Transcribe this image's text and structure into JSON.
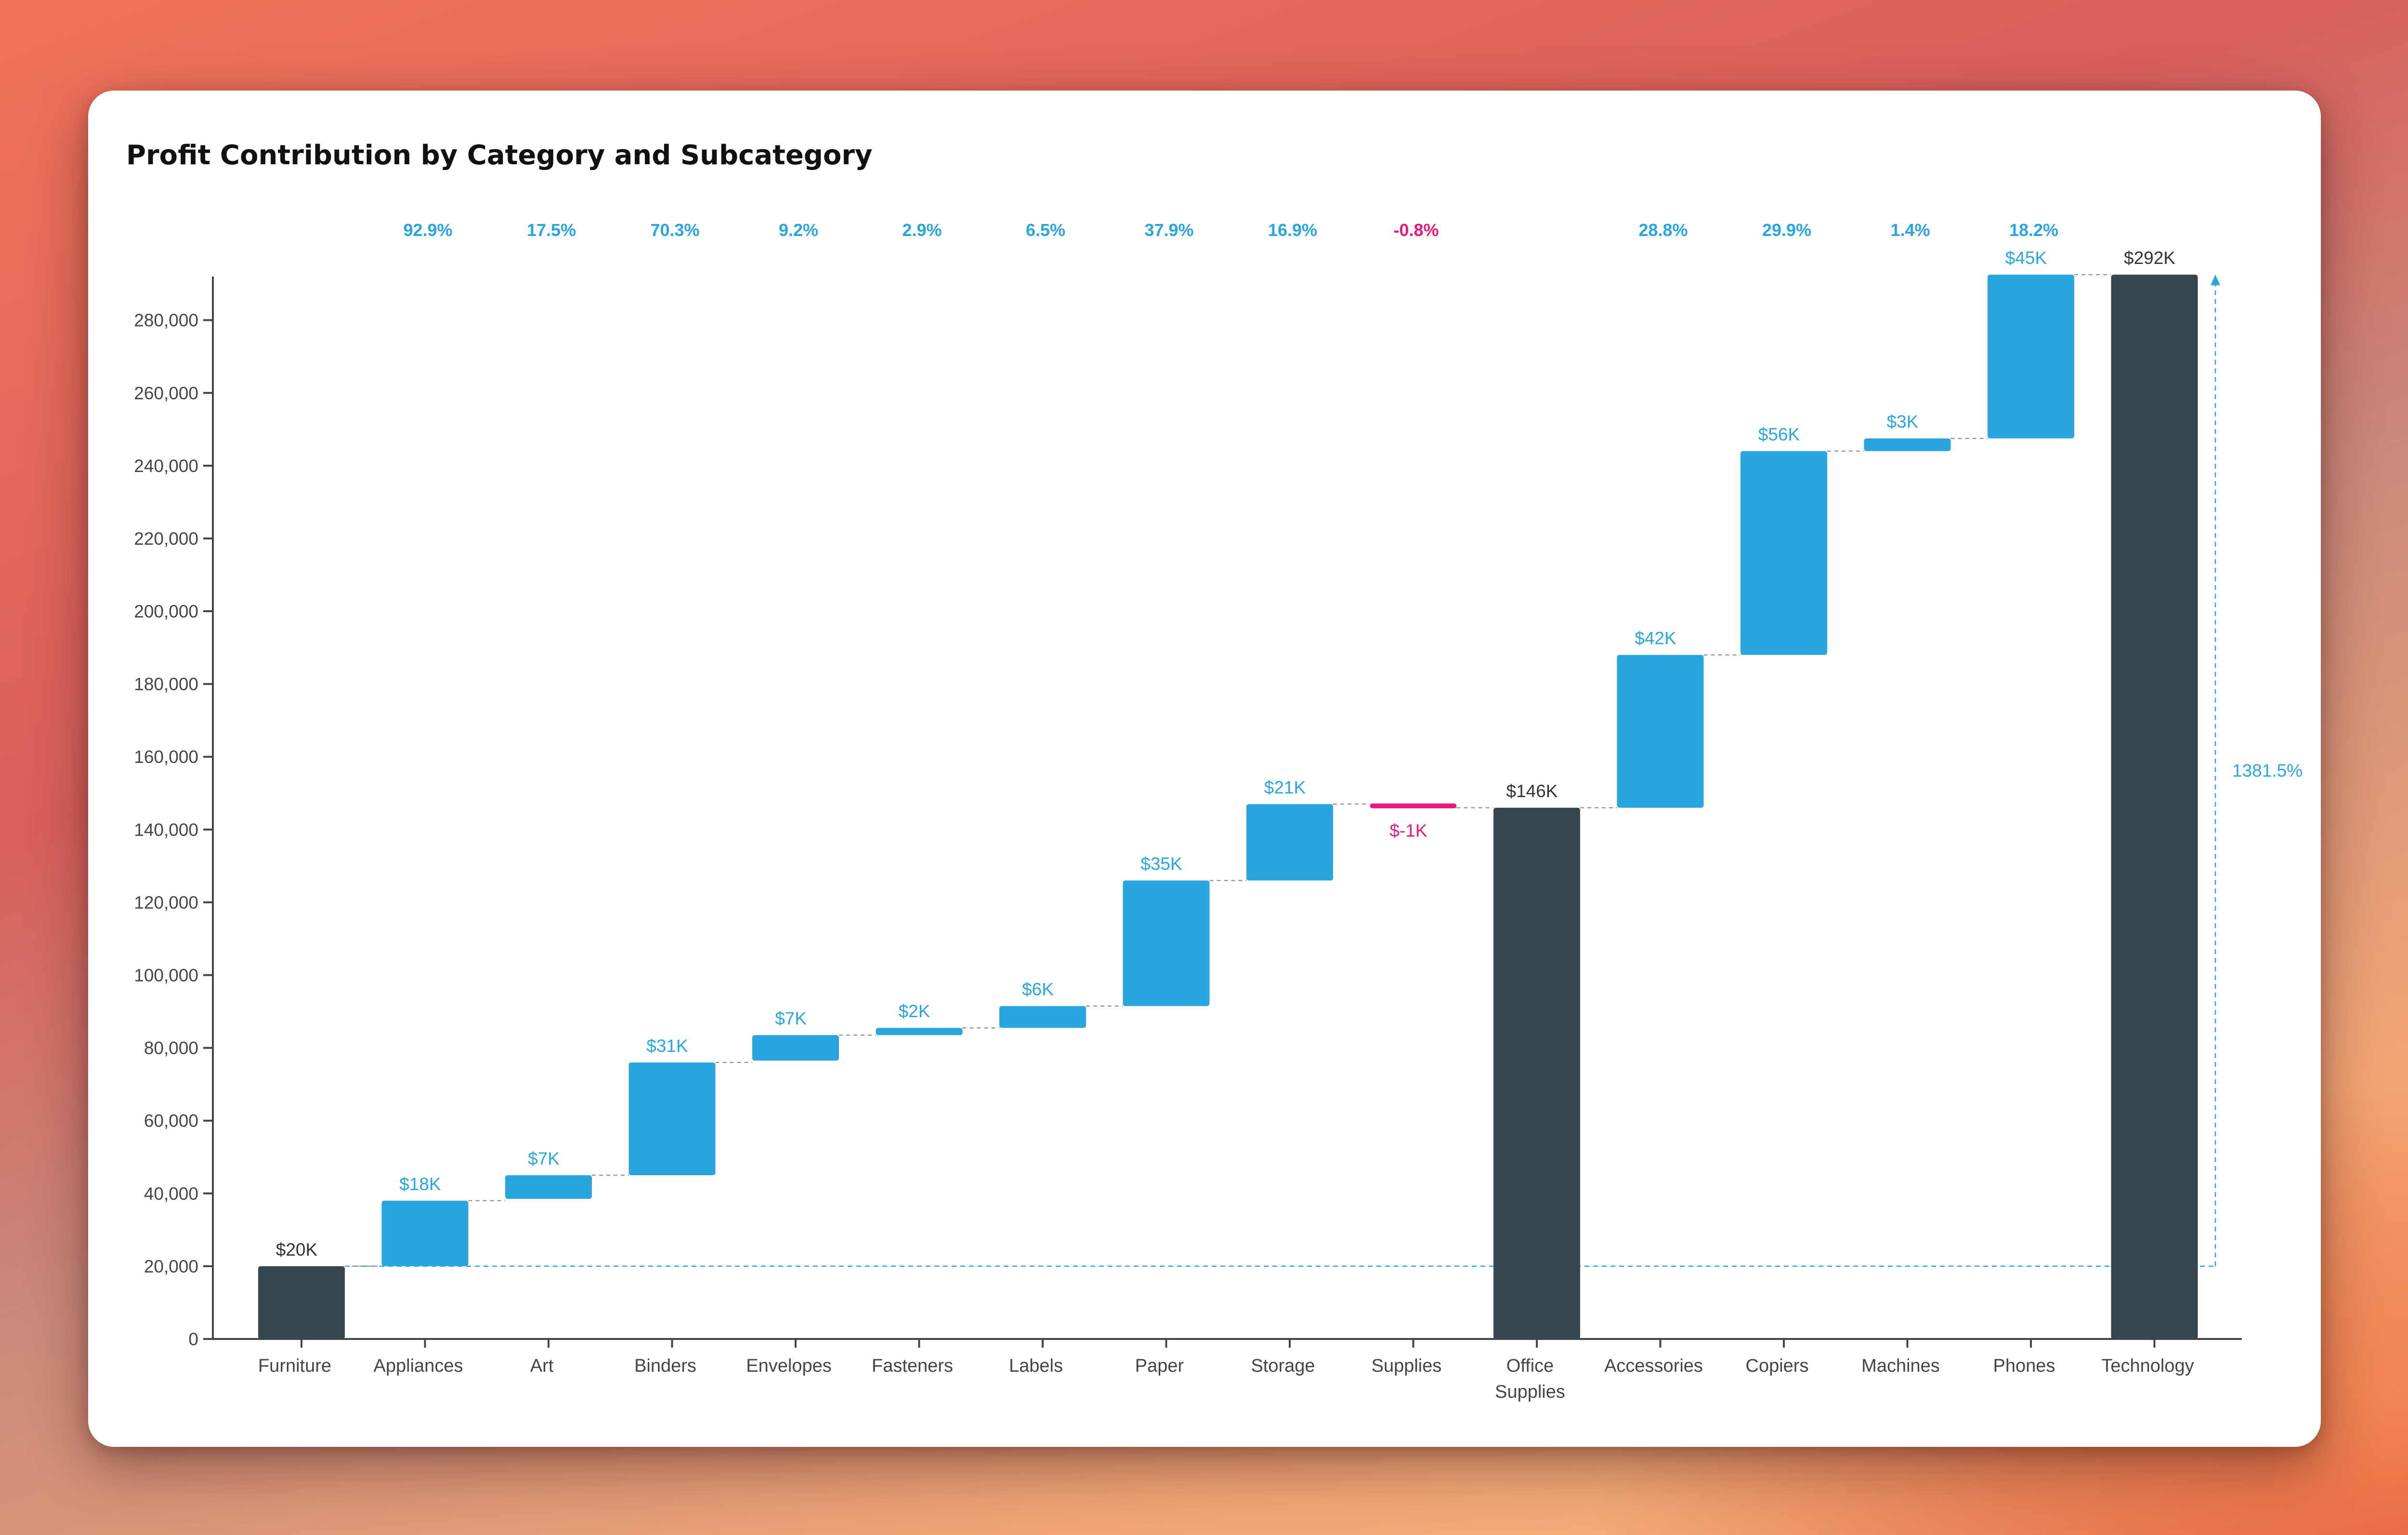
{
  "title": "Profit Contribution by Category and Subcategory",
  "colors": {
    "total": "#37474f",
    "positive": "#29a6e0",
    "negative": "#ea1a7a",
    "connector": "#999999",
    "axis": "#444444"
  },
  "chart_data": {
    "type": "bar",
    "subtype": "waterfall",
    "title": "Profit Contribution by Category and Subcategory",
    "xlabel": "",
    "ylabel": "",
    "ylim": [
      0,
      292000
    ],
    "yticks": [
      0,
      20000,
      40000,
      60000,
      80000,
      100000,
      120000,
      140000,
      160000,
      180000,
      200000,
      220000,
      240000,
      260000,
      280000
    ],
    "ytick_labels": [
      "0",
      "20,000",
      "40,000",
      "60,000",
      "80,000",
      "100,000",
      "120,000",
      "140,000",
      "160,000",
      "180,000",
      "200,000",
      "220,000",
      "240,000",
      "260,000",
      "280,000"
    ],
    "grid": false,
    "bars": [
      {
        "label": "Furniture",
        "kind": "total",
        "start": 0,
        "end": 20000,
        "value_label": "$20K",
        "pct_label": ""
      },
      {
        "label": "Appliances",
        "kind": "increase",
        "start": 20000,
        "end": 38000,
        "value_label": "$18K",
        "pct_label": "92.9%"
      },
      {
        "label": "Art",
        "kind": "increase",
        "start": 38500,
        "end": 45000,
        "value_label": "$7K",
        "pct_label": "17.5%"
      },
      {
        "label": "Binders",
        "kind": "increase",
        "start": 45000,
        "end": 76000,
        "value_label": "$31K",
        "pct_label": "70.3%"
      },
      {
        "label": "Envelopes",
        "kind": "increase",
        "start": 76500,
        "end": 83500,
        "value_label": "$7K",
        "pct_label": "9.2%"
      },
      {
        "label": "Fasteners",
        "kind": "increase",
        "start": 83500,
        "end": 85500,
        "value_label": "$2K",
        "pct_label": "2.9%"
      },
      {
        "label": "Labels",
        "kind": "increase",
        "start": 85500,
        "end": 91500,
        "value_label": "$6K",
        "pct_label": "6.5%"
      },
      {
        "label": "Paper",
        "kind": "increase",
        "start": 91500,
        "end": 126000,
        "value_label": "$35K",
        "pct_label": "37.9%"
      },
      {
        "label": "Storage",
        "kind": "increase",
        "start": 126000,
        "end": 147000,
        "value_label": "$21K",
        "pct_label": "16.9%"
      },
      {
        "label": "Supplies",
        "kind": "decrease",
        "start": 147000,
        "end": 146000,
        "value_label": "$-1K",
        "pct_label": "-0.8%"
      },
      {
        "label": "Office\nSupplies",
        "kind": "total",
        "start": 0,
        "end": 146000,
        "value_label": "$146K",
        "pct_label": ""
      },
      {
        "label": "Accessories",
        "kind": "increase",
        "start": 146000,
        "end": 188000,
        "value_label": "$42K",
        "pct_label": "28.8%"
      },
      {
        "label": "Copiers",
        "kind": "increase",
        "start": 188000,
        "end": 244000,
        "value_label": "$56K",
        "pct_label": "29.9%"
      },
      {
        "label": "Machines",
        "kind": "increase",
        "start": 244000,
        "end": 247500,
        "value_label": "$3K",
        "pct_label": "1.4%"
      },
      {
        "label": "Phones",
        "kind": "increase",
        "start": 247500,
        "end": 292500,
        "value_label": "$45K",
        "pct_label": "18.2%"
      },
      {
        "label": "Technology",
        "kind": "total",
        "start": 0,
        "end": 292500,
        "value_label": "$292K",
        "pct_label": ""
      }
    ],
    "overall_change": {
      "from": 20000,
      "to": 292500,
      "label": "1381.5%"
    }
  }
}
